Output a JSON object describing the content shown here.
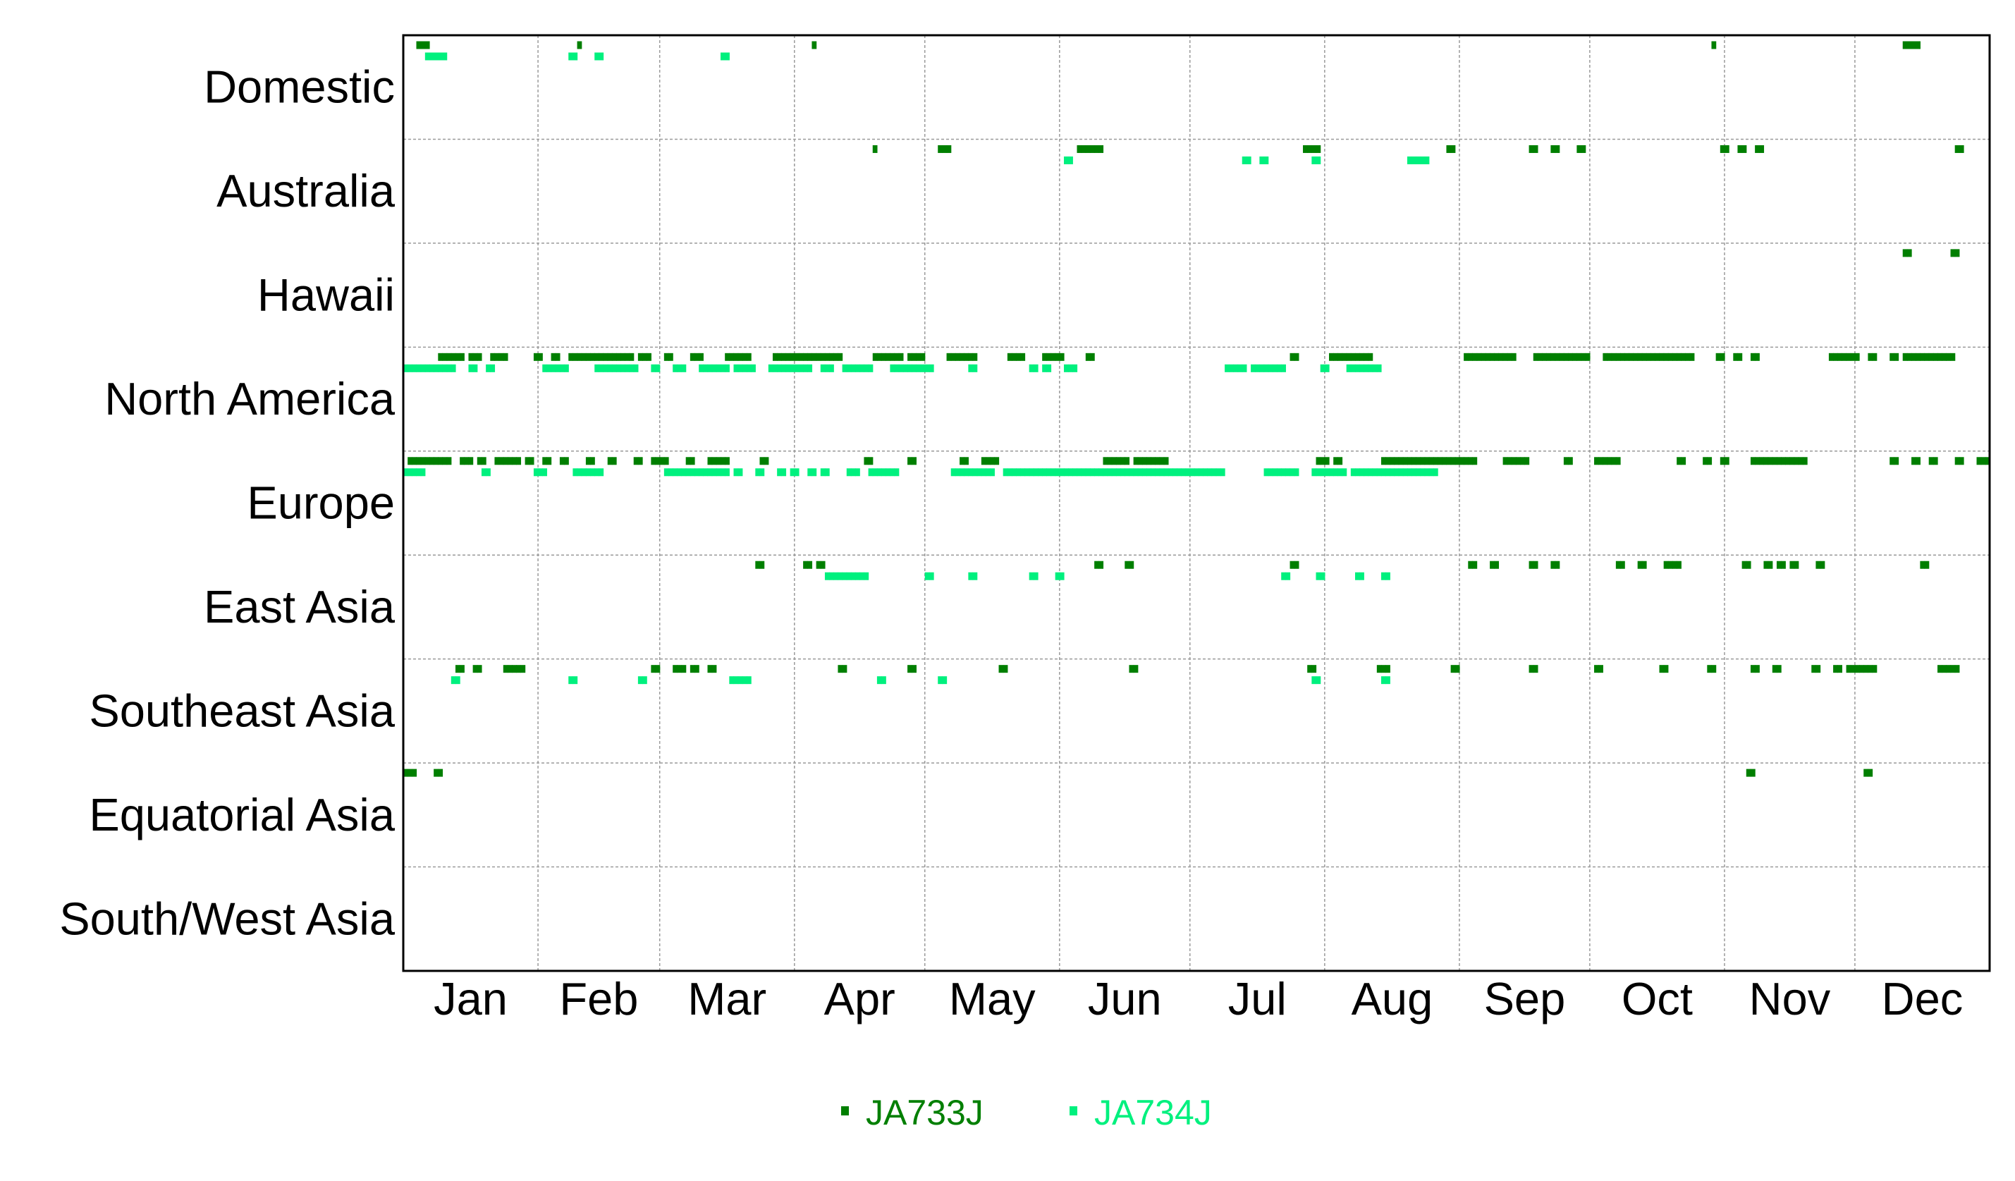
{
  "chart_data": {
    "type": "scatter",
    "title": "",
    "xlabel": "",
    "ylabel": "",
    "x_axis": "day of year (1 Jan to 31 Dec)",
    "xlim": [
      1,
      365
    ],
    "x_ticks": [
      "Jan",
      "Feb",
      "Mar",
      "Apr",
      "May",
      "Jun",
      "Jul",
      "Aug",
      "Sep",
      "Oct",
      "Nov",
      "Dec"
    ],
    "y_categories": [
      "Domestic",
      "Australia",
      "Hawaii",
      "North America",
      "Europe",
      "East Asia",
      "Southeast Asia",
      "Equatorial Asia",
      "South/West Asia"
    ],
    "grid": true,
    "legend_position": "bottom-center",
    "series": [
      {
        "name": "JA733J",
        "color": "#007f00",
        "points": [
          {
            "region": "Domestic",
            "days": [
              4,
              5,
              6,
              41,
              95,
              302,
              346,
              347,
              348,
              349
            ]
          },
          {
            "region": "Australia",
            "days": [
              109,
              124,
              125,
              126,
              156,
              157,
              158,
              159,
              160,
              161,
              208,
              209,
              210,
              211,
              241,
              242,
              260,
              261,
              265,
              266,
              271,
              272,
              304,
              305,
              308,
              309,
              312,
              313,
              358,
              359
            ]
          },
          {
            "region": "Hawaii",
            "days": [
              346,
              347,
              357,
              358
            ]
          },
          {
            "region": "North America",
            "days": [
              9,
              10,
              11,
              12,
              13,
              14,
              16,
              17,
              18,
              21,
              22,
              23,
              24,
              31,
              32,
              35,
              36,
              39,
              40,
              41,
              42,
              43,
              44,
              45,
              46,
              47,
              48,
              49,
              50,
              51,
              52,
              53,
              55,
              56,
              57,
              61,
              62,
              67,
              68,
              69,
              75,
              76,
              77,
              78,
              79,
              80,
              86,
              87,
              88,
              89,
              90,
              91,
              92,
              93,
              94,
              95,
              96,
              97,
              98,
              99,
              100,
              101,
              109,
              110,
              111,
              112,
              113,
              114,
              115,
              117,
              118,
              119,
              120,
              126,
              127,
              128,
              129,
              130,
              131,
              132,
              140,
              141,
              142,
              143,
              148,
              149,
              150,
              151,
              152,
              158,
              159,
              205,
              206,
              214,
              215,
              216,
              217,
              218,
              219,
              220,
              221,
              222,
              223,
              245,
              246,
              247,
              248,
              249,
              250,
              251,
              252,
              253,
              254,
              255,
              256,
              261,
              262,
              263,
              264,
              265,
              266,
              267,
              268,
              269,
              270,
              271,
              272,
              273,
              277,
              278,
              279,
              280,
              281,
              282,
              283,
              284,
              285,
              286,
              287,
              288,
              289,
              290,
              291,
              292,
              293,
              294,
              295,
              296,
              297,
              303,
              304,
              307,
              308,
              311,
              312,
              329,
              330,
              331,
              332,
              333,
              334,
              335,
              338,
              339,
              343,
              344,
              346,
              347,
              348,
              349,
              350,
              351,
              352,
              353,
              354,
              355,
              356,
              357
            ]
          },
          {
            "region": "Europe",
            "days": [
              2,
              3,
              4,
              5,
              6,
              7,
              8,
              9,
              10,
              11,
              14,
              15,
              16,
              18,
              19,
              22,
              23,
              24,
              25,
              26,
              27,
              29,
              30,
              33,
              34,
              37,
              38,
              43,
              44,
              48,
              49,
              54,
              55,
              58,
              59,
              60,
              61,
              66,
              67,
              71,
              72,
              73,
              74,
              75,
              83,
              84,
              107,
              108,
              117,
              118,
              129,
              130,
              134,
              135,
              136,
              137,
              162,
              163,
              164,
              165,
              166,
              167,
              169,
              170,
              171,
              172,
              173,
              174,
              175,
              176,
              211,
              212,
              213,
              215,
              216,
              226,
              227,
              228,
              229,
              230,
              231,
              232,
              233,
              234,
              235,
              236,
              237,
              238,
              239,
              240,
              241,
              242,
              243,
              244,
              245,
              246,
              247,
              254,
              255,
              256,
              257,
              258,
              259,
              268,
              269,
              275,
              276,
              277,
              278,
              279,
              280,
              294,
              295,
              300,
              301,
              304,
              305,
              311,
              312,
              313,
              314,
              315,
              316,
              317,
              318,
              319,
              320,
              321,
              322,
              323,
              343,
              344,
              348,
              349,
              352,
              353,
              358,
              359,
              363,
              364,
              365
            ]
          },
          {
            "region": "East Asia",
            "days": [
              82,
              83,
              93,
              94,
              96,
              97,
              160,
              161,
              167,
              168,
              205,
              206,
              246,
              247,
              251,
              252,
              260,
              261,
              265,
              266,
              280,
              281,
              285,
              286,
              291,
              292,
              293,
              294,
              309,
              310,
              314,
              315,
              317,
              318,
              320,
              321,
              326,
              327,
              350,
              351
            ]
          },
          {
            "region": "Southeast Asia",
            "days": [
              13,
              14,
              17,
              18,
              24,
              25,
              26,
              27,
              28,
              58,
              59,
              63,
              64,
              65,
              67,
              68,
              71,
              72,
              101,
              102,
              117,
              118,
              138,
              139,
              168,
              169,
              209,
              210,
              225,
              226,
              227,
              242,
              243,
              260,
              261,
              275,
              276,
              290,
              291,
              301,
              302,
              311,
              312,
              316,
              317,
              325,
              326,
              330,
              331,
              333,
              334,
              335,
              336,
              337,
              338,
              339,
              354,
              355,
              356,
              357,
              358
            ]
          },
          {
            "region": "Equatorial Asia",
            "days": [
              1,
              2,
              3,
              8,
              9,
              310,
              311,
              337,
              338
            ]
          }
        ]
      },
      {
        "name": "JA734J",
        "color": "#00f07e",
        "points": [
          {
            "region": "Domestic",
            "days": [
              6,
              7,
              8,
              9,
              10,
              39,
              40,
              45,
              46,
              74,
              75
            ]
          },
          {
            "region": "Australia",
            "days": [
              153,
              154,
              194,
              195,
              198,
              199,
              210,
              211,
              232,
              233,
              234,
              235,
              236
            ]
          },
          {
            "region": "North America",
            "days": [
              1,
              2,
              3,
              4,
              5,
              6,
              7,
              8,
              9,
              10,
              11,
              12,
              16,
              17,
              20,
              21,
              33,
              34,
              35,
              36,
              37,
              38,
              45,
              46,
              47,
              48,
              49,
              50,
              51,
              52,
              53,
              54,
              58,
              59,
              63,
              64,
              65,
              69,
              70,
              71,
              72,
              73,
              74,
              75,
              77,
              78,
              79,
              80,
              81,
              85,
              86,
              87,
              88,
              89,
              90,
              91,
              92,
              93,
              94,
              97,
              98,
              99,
              102,
              103,
              104,
              105,
              106,
              107,
              108,
              113,
              114,
              115,
              116,
              117,
              118,
              119,
              120,
              121,
              122,
              131,
              132,
              145,
              146,
              148,
              149,
              153,
              154,
              155,
              190,
              191,
              192,
              193,
              194,
              196,
              197,
              198,
              199,
              200,
              201,
              202,
              203,
              212,
              213,
              218,
              219,
              220,
              221,
              222,
              223,
              224,
              225
            ]
          },
          {
            "region": "Europe",
            "days": [
              1,
              2,
              3,
              4,
              5,
              19,
              20,
              31,
              32,
              33,
              40,
              41,
              42,
              43,
              44,
              45,
              46,
              61,
              62,
              63,
              64,
              65,
              66,
              67,
              68,
              69,
              70,
              71,
              72,
              73,
              74,
              75,
              77,
              78,
              82,
              83,
              87,
              88,
              90,
              91,
              94,
              95,
              97,
              98,
              103,
              104,
              105,
              108,
              109,
              110,
              111,
              112,
              113,
              114,
              127,
              128,
              129,
              130,
              131,
              132,
              133,
              134,
              135,
              136,
              139,
              140,
              141,
              142,
              143,
              144,
              145,
              146,
              147,
              148,
              149,
              150,
              151,
              152,
              153,
              154,
              155,
              156,
              157,
              158,
              159,
              160,
              161,
              162,
              163,
              164,
              165,
              166,
              167,
              168,
              169,
              170,
              171,
              172,
              173,
              174,
              175,
              176,
              177,
              178,
              179,
              180,
              181,
              182,
              183,
              184,
              185,
              186,
              187,
              188,
              189,
              199,
              200,
              201,
              202,
              203,
              204,
              205,
              206,
              210,
              211,
              212,
              213,
              214,
              215,
              216,
              217,
              219,
              220,
              221,
              222,
              223,
              224,
              225,
              226,
              227,
              228,
              229,
              230,
              231,
              232,
              233,
              234,
              235,
              236,
              237,
              238
            ]
          },
          {
            "region": "East Asia",
            "days": [
              98,
              99,
              100,
              101,
              102,
              103,
              104,
              105,
              106,
              107,
              121,
              122,
              131,
              132,
              145,
              146,
              151,
              152,
              203,
              204,
              211,
              212,
              220,
              221,
              226,
              227
            ]
          },
          {
            "region": "Southeast Asia",
            "days": [
              12,
              13,
              39,
              40,
              55,
              56,
              110,
              111,
              124,
              125,
              76,
              77,
              78,
              79,
              80,
              210,
              211,
              226,
              227
            ]
          }
        ]
      }
    ]
  }
}
